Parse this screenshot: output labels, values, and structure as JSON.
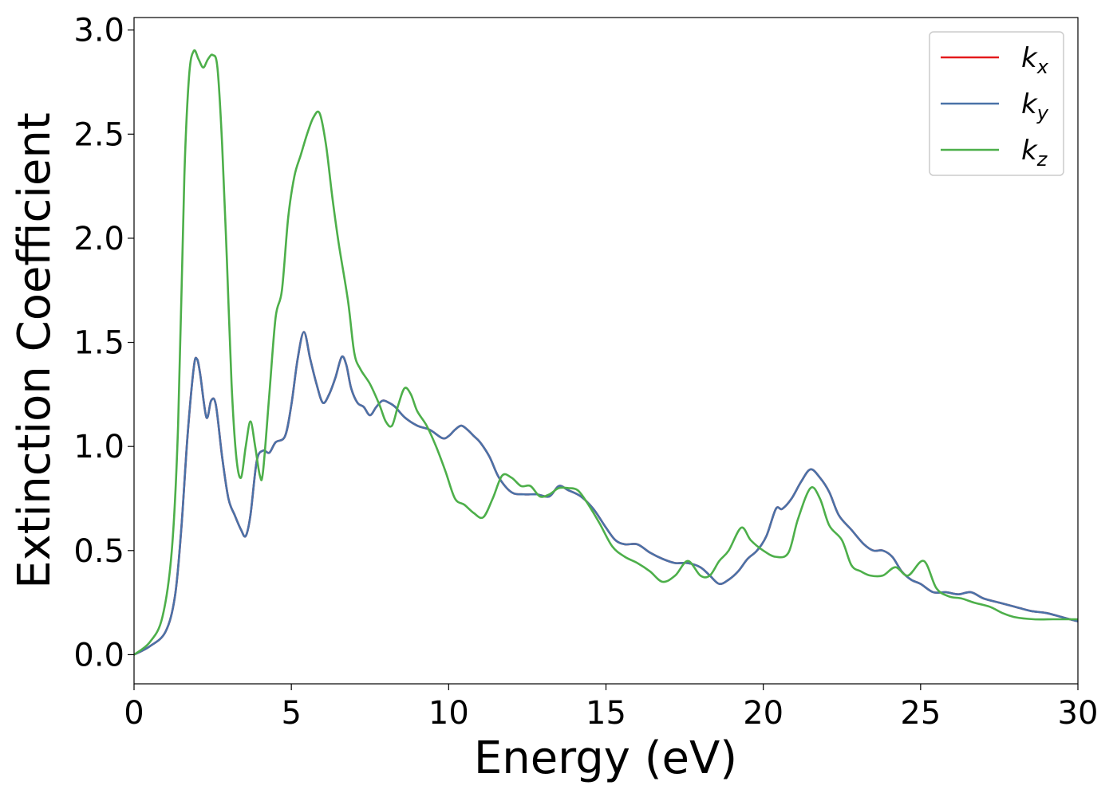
{
  "chart_data": {
    "type": "line",
    "xlabel": "Energy (eV)",
    "ylabel": "Extinction Coefficient",
    "xlim": [
      0,
      30
    ],
    "ylim": [
      -0.14,
      3.06
    ],
    "xticks": [
      0,
      5,
      10,
      15,
      20,
      25,
      30
    ],
    "xtick_labels": [
      "0",
      "5",
      "10",
      "15",
      "20",
      "25",
      "30"
    ],
    "yticks": [
      0.0,
      0.5,
      1.0,
      1.5,
      2.0,
      2.5,
      3.0
    ],
    "ytick_labels": [
      "0.0",
      "0.5",
      "1.0",
      "1.5",
      "2.0",
      "2.5",
      "3.0"
    ],
    "grid": false,
    "legend_position": "top-right",
    "series": [
      {
        "name": "k",
        "subscript": "x",
        "color": "#e41a1c",
        "x": [
          0,
          0.5,
          1.0,
          1.3,
          1.5,
          1.7,
          1.9,
          2.0,
          2.1,
          2.3,
          2.45,
          2.6,
          2.8,
          3.0,
          3.2,
          3.4,
          3.55,
          3.7,
          3.9,
          4.1,
          4.3,
          4.5,
          4.8,
          5.0,
          5.2,
          5.4,
          5.6,
          5.8,
          6.0,
          6.2,
          6.4,
          6.6,
          6.75,
          6.9,
          7.1,
          7.3,
          7.5,
          7.7,
          7.9,
          8.1,
          8.3,
          8.6,
          9.0,
          9.4,
          9.8,
          10.0,
          10.2,
          10.4,
          10.6,
          10.8,
          11.0,
          11.3,
          11.6,
          12.0,
          12.4,
          12.8,
          13.2,
          13.5,
          13.8,
          14.2,
          14.6,
          15.0,
          15.3,
          15.6,
          16.0,
          16.4,
          16.8,
          17.2,
          17.6,
          18.0,
          18.3,
          18.6,
          18.9,
          19.2,
          19.5,
          19.8,
          20.1,
          20.4,
          20.6,
          20.9,
          21.2,
          21.5,
          21.8,
          22.1,
          22.4,
          22.8,
          23.2,
          23.5,
          23.8,
          24.1,
          24.4,
          24.7,
          25.0,
          25.4,
          25.8,
          26.2,
          26.6,
          27.0,
          27.5,
          28.0,
          28.5,
          29.0,
          29.5,
          30.0
        ],
        "values": [
          0,
          0.04,
          0.11,
          0.28,
          0.6,
          1.05,
          1.38,
          1.42,
          1.35,
          1.14,
          1.22,
          1.2,
          0.95,
          0.75,
          0.67,
          0.6,
          0.57,
          0.67,
          0.93,
          0.98,
          0.97,
          1.02,
          1.05,
          1.2,
          1.42,
          1.55,
          1.42,
          1.3,
          1.21,
          1.25,
          1.33,
          1.43,
          1.39,
          1.28,
          1.21,
          1.19,
          1.15,
          1.19,
          1.22,
          1.21,
          1.19,
          1.14,
          1.1,
          1.08,
          1.04,
          1.05,
          1.08,
          1.1,
          1.08,
          1.05,
          1.02,
          0.95,
          0.85,
          0.78,
          0.77,
          0.77,
          0.76,
          0.81,
          0.79,
          0.76,
          0.7,
          0.61,
          0.55,
          0.53,
          0.53,
          0.49,
          0.46,
          0.44,
          0.44,
          0.42,
          0.38,
          0.34,
          0.36,
          0.4,
          0.46,
          0.5,
          0.57,
          0.7,
          0.7,
          0.75,
          0.83,
          0.89,
          0.85,
          0.78,
          0.67,
          0.6,
          0.53,
          0.5,
          0.5,
          0.47,
          0.4,
          0.36,
          0.34,
          0.3,
          0.3,
          0.29,
          0.3,
          0.27,
          0.25,
          0.23,
          0.21,
          0.2,
          0.18,
          0.16
        ]
      },
      {
        "name": "k",
        "subscript": "y",
        "color": "#4a72a8",
        "x": [
          0,
          0.5,
          1.0,
          1.3,
          1.5,
          1.7,
          1.9,
          2.0,
          2.1,
          2.3,
          2.45,
          2.6,
          2.8,
          3.0,
          3.2,
          3.4,
          3.55,
          3.7,
          3.9,
          4.1,
          4.3,
          4.5,
          4.8,
          5.0,
          5.2,
          5.4,
          5.6,
          5.8,
          6.0,
          6.2,
          6.4,
          6.6,
          6.75,
          6.9,
          7.1,
          7.3,
          7.5,
          7.7,
          7.9,
          8.1,
          8.3,
          8.6,
          9.0,
          9.4,
          9.8,
          10.0,
          10.2,
          10.4,
          10.6,
          10.8,
          11.0,
          11.3,
          11.6,
          12.0,
          12.4,
          12.8,
          13.2,
          13.5,
          13.8,
          14.2,
          14.6,
          15.0,
          15.3,
          15.6,
          16.0,
          16.4,
          16.8,
          17.2,
          17.6,
          18.0,
          18.3,
          18.6,
          18.9,
          19.2,
          19.5,
          19.8,
          20.1,
          20.4,
          20.6,
          20.9,
          21.2,
          21.5,
          21.8,
          22.1,
          22.4,
          22.8,
          23.2,
          23.5,
          23.8,
          24.1,
          24.4,
          24.7,
          25.0,
          25.4,
          25.8,
          26.2,
          26.6,
          27.0,
          27.5,
          28.0,
          28.5,
          29.0,
          29.5,
          30.0
        ],
        "values": [
          0,
          0.04,
          0.11,
          0.28,
          0.6,
          1.05,
          1.38,
          1.42,
          1.35,
          1.14,
          1.22,
          1.2,
          0.95,
          0.75,
          0.67,
          0.6,
          0.57,
          0.67,
          0.93,
          0.98,
          0.97,
          1.02,
          1.05,
          1.2,
          1.42,
          1.55,
          1.42,
          1.3,
          1.21,
          1.25,
          1.33,
          1.43,
          1.39,
          1.28,
          1.21,
          1.19,
          1.15,
          1.19,
          1.22,
          1.21,
          1.19,
          1.14,
          1.1,
          1.08,
          1.04,
          1.05,
          1.08,
          1.1,
          1.08,
          1.05,
          1.02,
          0.95,
          0.85,
          0.78,
          0.77,
          0.77,
          0.76,
          0.81,
          0.79,
          0.76,
          0.7,
          0.61,
          0.55,
          0.53,
          0.53,
          0.49,
          0.46,
          0.44,
          0.44,
          0.42,
          0.38,
          0.34,
          0.36,
          0.4,
          0.46,
          0.5,
          0.57,
          0.7,
          0.7,
          0.75,
          0.83,
          0.89,
          0.85,
          0.78,
          0.67,
          0.6,
          0.53,
          0.5,
          0.5,
          0.47,
          0.4,
          0.36,
          0.34,
          0.3,
          0.3,
          0.29,
          0.3,
          0.27,
          0.25,
          0.23,
          0.21,
          0.2,
          0.18,
          0.16
        ]
      },
      {
        "name": "k",
        "subscript": "z",
        "color": "#4daf4a",
        "x": [
          0,
          0.5,
          0.9,
          1.2,
          1.4,
          1.6,
          1.75,
          1.9,
          2.05,
          2.2,
          2.35,
          2.5,
          2.65,
          2.8,
          2.95,
          3.1,
          3.25,
          3.4,
          3.55,
          3.7,
          3.85,
          4.0,
          4.1,
          4.3,
          4.5,
          4.7,
          4.9,
          5.1,
          5.3,
          5.5,
          5.7,
          5.9,
          6.1,
          6.3,
          6.5,
          6.8,
          7.0,
          7.2,
          7.5,
          7.8,
          8.0,
          8.2,
          8.4,
          8.6,
          8.8,
          9.0,
          9.3,
          9.6,
          9.9,
          10.2,
          10.5,
          10.8,
          11.1,
          11.4,
          11.7,
          12.0,
          12.3,
          12.6,
          12.9,
          13.2,
          13.5,
          13.8,
          14.1,
          14.4,
          14.8,
          15.2,
          15.6,
          16.0,
          16.4,
          16.8,
          17.2,
          17.6,
          18.0,
          18.3,
          18.6,
          18.9,
          19.3,
          19.6,
          20.0,
          20.4,
          20.8,
          21.1,
          21.5,
          21.8,
          22.1,
          22.5,
          22.8,
          23.1,
          23.4,
          23.8,
          24.2,
          24.6,
          25.1,
          25.5,
          25.9,
          26.3,
          26.7,
          27.2,
          27.6,
          28.0,
          28.6,
          29.2,
          29.6,
          30.0
        ],
        "values": [
          0,
          0.06,
          0.18,
          0.5,
          1.1,
          2.3,
          2.78,
          2.9,
          2.86,
          2.82,
          2.86,
          2.88,
          2.82,
          2.45,
          1.9,
          1.3,
          0.95,
          0.85,
          1.0,
          1.12,
          1.0,
          0.86,
          0.88,
          1.25,
          1.62,
          1.75,
          2.1,
          2.3,
          2.4,
          2.5,
          2.58,
          2.6,
          2.45,
          2.2,
          1.98,
          1.7,
          1.45,
          1.37,
          1.3,
          1.2,
          1.12,
          1.1,
          1.2,
          1.28,
          1.25,
          1.17,
          1.1,
          1.0,
          0.88,
          0.75,
          0.72,
          0.68,
          0.66,
          0.75,
          0.86,
          0.85,
          0.81,
          0.81,
          0.76,
          0.77,
          0.8,
          0.8,
          0.79,
          0.73,
          0.63,
          0.52,
          0.47,
          0.44,
          0.4,
          0.35,
          0.38,
          0.45,
          0.38,
          0.38,
          0.45,
          0.5,
          0.61,
          0.55,
          0.5,
          0.47,
          0.49,
          0.65,
          0.8,
          0.75,
          0.62,
          0.55,
          0.43,
          0.4,
          0.38,
          0.38,
          0.42,
          0.38,
          0.45,
          0.32,
          0.28,
          0.27,
          0.25,
          0.23,
          0.2,
          0.18,
          0.17,
          0.17,
          0.17,
          0.17
        ]
      }
    ]
  }
}
